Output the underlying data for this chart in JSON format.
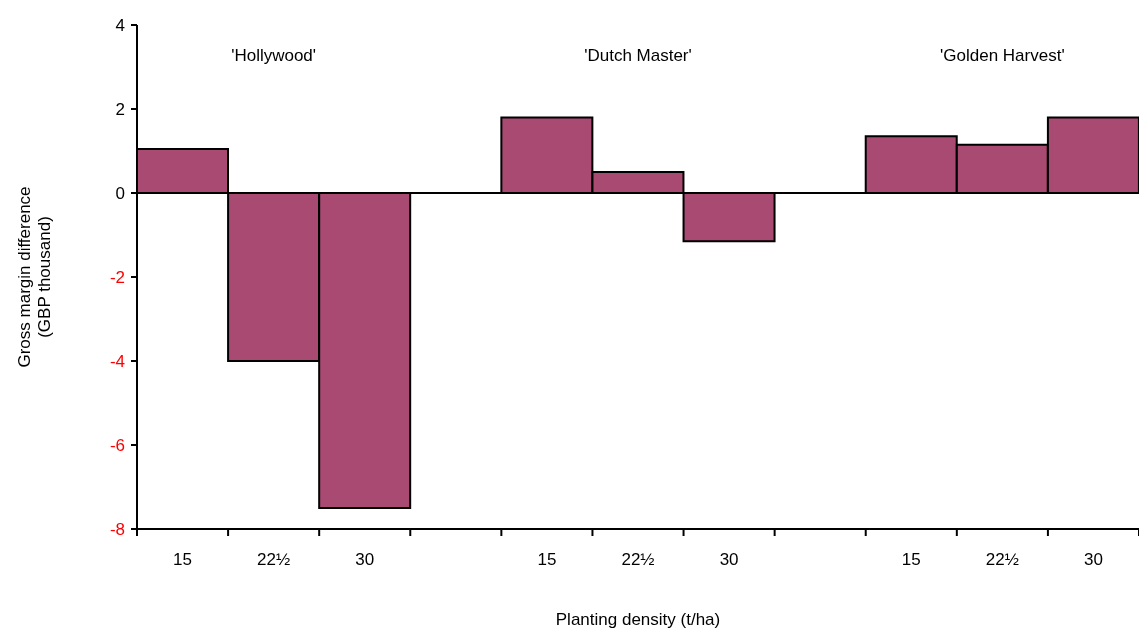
{
  "chart_data": {
    "type": "bar",
    "xlabel": "Planting density (t/ha)",
    "ylabel": "Gross margin difference\n(GBP thousand)",
    "categories": [
      "15",
      "22½",
      "30",
      null,
      "15",
      "22½",
      "30",
      null,
      "15",
      "22½",
      "30"
    ],
    "values": [
      1.05,
      -4.0,
      -7.5,
      null,
      1.8,
      0.5,
      -1.15,
      null,
      1.35,
      1.15,
      1.8
    ],
    "color": "#a84a72",
    "ylim": [
      -8,
      4
    ],
    "yticks": [
      -8,
      -6,
      -4,
      -2,
      0,
      2,
      4
    ],
    "grid": false,
    "ref_lines": [
      {
        "axis": "y",
        "value": 0,
        "label": null
      }
    ],
    "annotations": [
      "'Hollywood'",
      "'Dutch Master'",
      "'Golden Harvest'"
    ]
  }
}
